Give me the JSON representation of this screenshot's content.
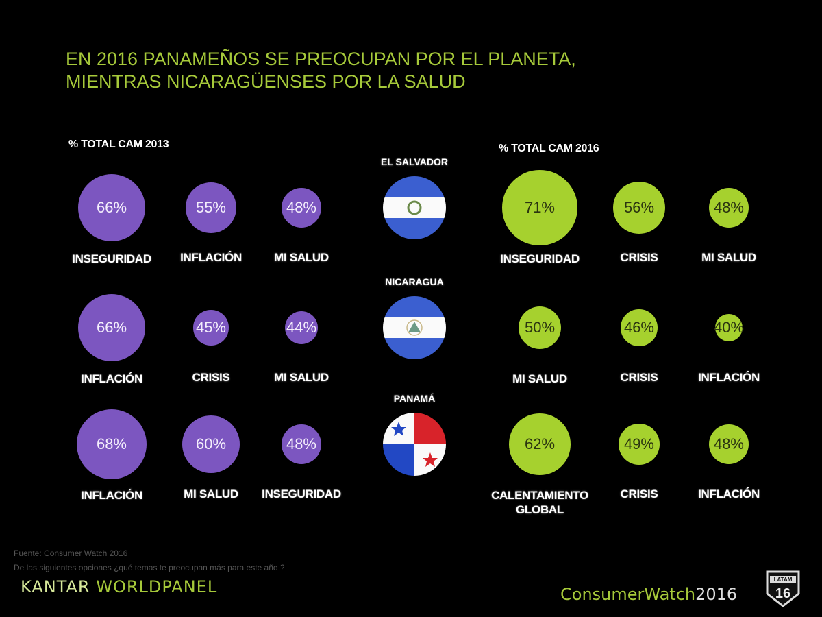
{
  "title": {
    "line1": "EN 2016 PANAMEÑOS SE PREOCUPAN POR EL PLANETA,",
    "line2": "MIENTRAS NICARAGÜENSES POR LA SALUD"
  },
  "colors": {
    "title": "#a6c93a",
    "bubble_2013": "#7c56c0",
    "bubble_2016": "#a6d12e",
    "background": "#000000"
  },
  "chart_data": {
    "type": "bubble-table",
    "title": "EN 2016 PANAMEÑOS SE PREOCUPAN POR EL PLANETA, MIENTRAS NICARAGÜENSES POR LA SALUD",
    "unit": "%",
    "panels": [
      {
        "label": "% TOTAL CAM  2013",
        "year": 2013
      },
      {
        "label": "% TOTAL CAM  2016",
        "year": 2016
      }
    ],
    "countries": [
      {
        "name": "EL SALVADOR",
        "flag": "el-salvador-flag",
        "y2013": [
          {
            "label": "INSEGURIDAD",
            "value": 66,
            "text": "66%"
          },
          {
            "label": "INFLACIÓN",
            "value": 55,
            "text": "55%"
          },
          {
            "label": "MI SALUD",
            "value": 48,
            "text": "48%"
          }
        ],
        "y2016": [
          {
            "label": "INSEGURIDAD",
            "value": 71,
            "text": "71%"
          },
          {
            "label": "CRISIS",
            "value": 56,
            "text": "56%"
          },
          {
            "label": "MI SALUD",
            "value": 48,
            "text": "48%"
          }
        ]
      },
      {
        "name": "NICARAGUA",
        "flag": "nicaragua-flag",
        "y2013": [
          {
            "label": "INFLACIÓN",
            "value": 66,
            "text": "66%"
          },
          {
            "label": "CRISIS",
            "value": 45,
            "text": "45%"
          },
          {
            "label": "MI SALUD",
            "value": 44,
            "text": "44%"
          }
        ],
        "y2016": [
          {
            "label": "MI SALUD",
            "value": 50,
            "text": "50%"
          },
          {
            "label": "CRISIS",
            "value": 46,
            "text": "46%"
          },
          {
            "label": "INFLACIÓN",
            "value": 40,
            "text": "40%"
          }
        ]
      },
      {
        "name": "PANAMÁ",
        "flag": "panama-flag",
        "y2013": [
          {
            "label": "INFLACIÓN",
            "value": 68,
            "text": "68%"
          },
          {
            "label": "MI SALUD",
            "value": 60,
            "text": "60%"
          },
          {
            "label": "INSEGURIDAD",
            "value": 48,
            "text": "48%"
          }
        ],
        "y2016": [
          {
            "label": "CALENTAMIENTO\nGLOBAL",
            "value": 62,
            "text": "62%"
          },
          {
            "label": "CRISIS",
            "value": 49,
            "text": "49%"
          },
          {
            "label": "INFLACIÓN",
            "value": 48,
            "text": "48%"
          }
        ]
      }
    ]
  },
  "footer": {
    "source": "Fuente: Consumer Watch 2016",
    "question": "De las siguientes opciones ¿qué temas te preocupan más para este año ?",
    "kantar_a": "KANTAR ",
    "kantar_b": "WORLDPANEL",
    "cw_a": "ConsumerWatch",
    "cw_b": "2016",
    "badge_top": "LATAM",
    "badge_num": "16"
  }
}
